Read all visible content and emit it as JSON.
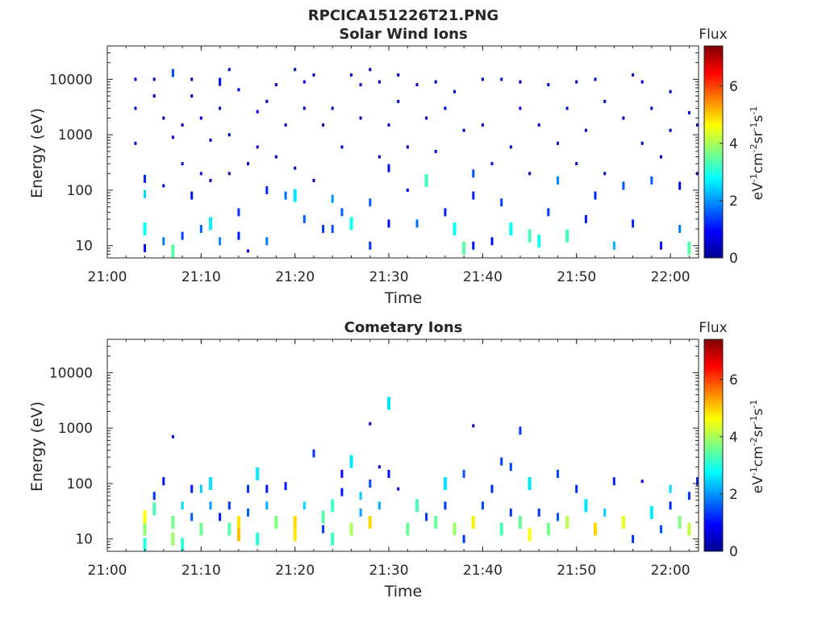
{
  "figure_title": "RPCICA151226T21.PNG",
  "colormap": {
    "stops": [
      "#00008f",
      "#0000ff",
      "#0080ff",
      "#00ffff",
      "#80ff80",
      "#ffff00",
      "#ff8000",
      "#ff0000",
      "#800000"
    ],
    "range": [
      0,
      7.4
    ]
  },
  "chart_data": [
    {
      "type": "heatmap",
      "title": "Solar Wind Ions",
      "xlabel": "Time",
      "ylabel": "Energy (eV)",
      "xlim": [
        "21:00",
        "22:03"
      ],
      "ylim": [
        6,
        40000
      ],
      "y_scale": "log",
      "x_ticks": [
        "21:00",
        "21:10",
        "21:20",
        "21:30",
        "21:40",
        "21:50",
        "22:00"
      ],
      "y_ticks": [
        "10",
        "100",
        "1000",
        "10000"
      ],
      "colorbar": {
        "label": "Flux",
        "units": "eV-1cm-2sr-1s-1",
        "ticks": [
          "0",
          "2",
          "4",
          "6"
        ],
        "range": [
          0,
          7.4
        ]
      },
      "points": [
        [
          "21:03",
          3000,
          0.5
        ],
        [
          "21:03",
          700,
          0.4
        ],
        [
          "21:03",
          10000,
          0.5
        ],
        [
          "21:04",
          85,
          2.5
        ],
        [
          "21:04",
          160,
          1.2
        ],
        [
          "21:04",
          20,
          2.8
        ],
        [
          "21:04",
          9,
          1.0
        ],
        [
          "21:05",
          10000,
          0.6
        ],
        [
          "21:05",
          5000,
          0.9
        ],
        [
          "21:06",
          120,
          0.8
        ],
        [
          "21:06",
          2000,
          0.5
        ],
        [
          "21:06",
          12,
          1.8
        ],
        [
          "21:07",
          900,
          0.7
        ],
        [
          "21:07",
          13000,
          1.4
        ],
        [
          "21:07",
          8,
          3.4
        ],
        [
          "21:08",
          1500,
          0.4
        ],
        [
          "21:08",
          300,
          0.6
        ],
        [
          "21:08",
          15,
          1.4
        ],
        [
          "21:09",
          10000,
          0.4
        ],
        [
          "21:09",
          80,
          1.1
        ],
        [
          "21:09",
          5000,
          0.6
        ],
        [
          "21:10",
          20,
          1.6
        ],
        [
          "21:10",
          2000,
          0.6
        ],
        [
          "21:10",
          200,
          0.8
        ],
        [
          "21:11",
          800,
          0.6
        ],
        [
          "21:11",
          150,
          0.4
        ],
        [
          "21:11",
          25,
          2.7
        ],
        [
          "21:12",
          9000,
          1.0
        ],
        [
          "21:12",
          3000,
          0.5
        ],
        [
          "21:12",
          12,
          1.9
        ],
        [
          "21:13",
          15000,
          0.5
        ],
        [
          "21:13",
          1000,
          0.4
        ],
        [
          "21:13",
          200,
          0.3
        ],
        [
          "21:14",
          40,
          1.3
        ],
        [
          "21:14",
          15,
          1.1
        ],
        [
          "21:14",
          6500,
          0.9
        ],
        [
          "21:15",
          300,
          0.5
        ],
        [
          "21:15",
          8,
          0.9
        ],
        [
          "21:16",
          2600,
          0.9
        ],
        [
          "21:16",
          600,
          0.6
        ],
        [
          "21:17",
          100,
          1.2
        ],
        [
          "21:17",
          12,
          1.8
        ],
        [
          "21:17",
          4000,
          0.6
        ],
        [
          "21:18",
          8000,
          0.6
        ],
        [
          "21:18",
          400,
          0.5
        ],
        [
          "21:19",
          80,
          1.7
        ],
        [
          "21:19",
          1500,
          0.6
        ],
        [
          "21:20",
          80,
          2.6
        ],
        [
          "21:20",
          15000,
          0.5
        ],
        [
          "21:20",
          250,
          0.6
        ],
        [
          "21:21",
          9000,
          0.9
        ],
        [
          "21:21",
          3000,
          0.5
        ],
        [
          "21:21",
          30,
          1.6
        ],
        [
          "21:22",
          150,
          0.6
        ],
        [
          "21:22",
          12000,
          0.4
        ],
        [
          "21:23",
          20,
          1.3
        ],
        [
          "21:23",
          1500,
          0.4
        ],
        [
          "21:24",
          20,
          1.5
        ],
        [
          "21:24",
          70,
          2.0
        ],
        [
          "21:24",
          3000,
          0.5
        ],
        [
          "21:25",
          40,
          1.6
        ],
        [
          "21:25",
          600,
          0.5
        ],
        [
          "21:26",
          12000,
          0.6
        ],
        [
          "21:26",
          25,
          2.9
        ],
        [
          "21:27",
          2000,
          0.4
        ],
        [
          "21:27",
          8000,
          0.6
        ],
        [
          "21:28",
          15000,
          0.6
        ],
        [
          "21:28",
          60,
          1.6
        ],
        [
          "21:28",
          10,
          1.3
        ],
        [
          "21:29",
          400,
          0.6
        ],
        [
          "21:29",
          9000,
          0.6
        ],
        [
          "21:30",
          1500,
          0.5
        ],
        [
          "21:30",
          250,
          1.0
        ],
        [
          "21:30",
          25,
          1.0
        ],
        [
          "21:31",
          12000,
          0.4
        ],
        [
          "21:31",
          4000,
          0.5
        ],
        [
          "21:32",
          100,
          0.8
        ],
        [
          "21:32",
          600,
          0.4
        ],
        [
          "21:33",
          8000,
          0.6
        ],
        [
          "21:33",
          25,
          1.7
        ],
        [
          "21:34",
          150,
          3.2
        ],
        [
          "21:34",
          2000,
          0.7
        ],
        [
          "21:35",
          9000,
          0.4
        ],
        [
          "21:35",
          500,
          0.5
        ],
        [
          "21:36",
          40,
          1.2
        ],
        [
          "21:36",
          3000,
          0.6
        ],
        [
          "21:37",
          20,
          2.8
        ],
        [
          "21:37",
          6000,
          0.4
        ],
        [
          "21:38",
          9,
          3.4
        ],
        [
          "21:38",
          1200,
          0.5
        ],
        [
          "21:39",
          10,
          1.0
        ],
        [
          "21:39",
          200,
          1.5
        ],
        [
          "21:39",
          80,
          1.2
        ],
        [
          "21:40",
          10000,
          0.4
        ],
        [
          "21:40",
          1500,
          0.6
        ],
        [
          "21:41",
          300,
          0.5
        ],
        [
          "21:41",
          12,
          1.0
        ],
        [
          "21:42",
          60,
          1.4
        ],
        [
          "21:42",
          10000,
          0.5
        ],
        [
          "21:43",
          20,
          2.8
        ],
        [
          "21:43",
          600,
          0.5
        ],
        [
          "21:44",
          9000,
          0.4
        ],
        [
          "21:44",
          3000,
          0.6
        ],
        [
          "21:45",
          15,
          3.3
        ],
        [
          "21:45",
          200,
          0.5
        ],
        [
          "21:46",
          1500,
          0.5
        ],
        [
          "21:46",
          12,
          2.9
        ],
        [
          "21:47",
          8000,
          0.6
        ],
        [
          "21:47",
          40,
          1.3
        ],
        [
          "21:48",
          150,
          1.9
        ],
        [
          "21:48",
          700,
          0.4
        ],
        [
          "21:49",
          15,
          3.2
        ],
        [
          "21:49",
          3000,
          0.5
        ],
        [
          "21:50",
          9000,
          0.5
        ],
        [
          "21:50",
          300,
          0.5
        ],
        [
          "21:51",
          1200,
          0.6
        ],
        [
          "21:51",
          30,
          1.1
        ],
        [
          "21:52",
          10000,
          0.4
        ],
        [
          "21:52",
          80,
          1.2
        ],
        [
          "21:53",
          200,
          0.6
        ],
        [
          "21:53",
          4000,
          0.6
        ],
        [
          "21:54",
          10,
          2.2
        ],
        [
          "21:55",
          2000,
          0.5
        ],
        [
          "21:55",
          120,
          1.5
        ],
        [
          "21:56",
          25,
          1.2
        ],
        [
          "21:56",
          12000,
          0.5
        ],
        [
          "21:57",
          700,
          0.4
        ],
        [
          "21:57",
          9000,
          0.6
        ],
        [
          "21:58",
          150,
          1.6
        ],
        [
          "21:58",
          3000,
          0.5
        ],
        [
          "21:59",
          10,
          1.1
        ],
        [
          "21:59",
          400,
          0.5
        ],
        [
          "22:00",
          6000,
          0.5
        ],
        [
          "22:00",
          1200,
          0.5
        ],
        [
          "22:01",
          120,
          1.0
        ],
        [
          "22:01",
          20,
          1.8
        ],
        [
          "22:02",
          2500,
          0.6
        ],
        [
          "22:02",
          9,
          3.4
        ],
        [
          "22:03",
          200,
          0.6
        ],
        [
          "22:03",
          1500,
          0.5
        ]
      ]
    },
    {
      "type": "heatmap",
      "title": "Cometary Ions",
      "xlabel": "Time",
      "ylabel": "Energy (eV)",
      "xlim": [
        "21:00",
        "22:03"
      ],
      "ylim": [
        6,
        40000
      ],
      "y_scale": "log",
      "x_ticks": [
        "21:00",
        "21:10",
        "21:20",
        "21:30",
        "21:40",
        "21:50",
        "22:00"
      ],
      "y_ticks": [
        "10",
        "100",
        "1000",
        "10000"
      ],
      "colorbar": {
        "label": "Flux",
        "units": "eV-1cm-2sr-1s-1",
        "ticks": [
          "0",
          "2",
          "4",
          "6"
        ],
        "range": [
          0,
          7.4
        ]
      },
      "points": [
        [
          "21:04",
          15,
          3.8
        ],
        [
          "21:04",
          25,
          4.6
        ],
        [
          "21:04",
          8,
          3.0
        ],
        [
          "21:05",
          60,
          1.3
        ],
        [
          "21:05",
          35,
          3.3
        ],
        [
          "21:06",
          110,
          1.0
        ],
        [
          "21:07",
          700,
          0.5
        ],
        [
          "21:07",
          20,
          3.6
        ],
        [
          "21:07",
          10,
          3.9
        ],
        [
          "21:08",
          40,
          2.5
        ],
        [
          "21:08",
          8,
          3.1
        ],
        [
          "21:09",
          80,
          1.1
        ],
        [
          "21:09",
          25,
          1.6
        ],
        [
          "21:10",
          15,
          3.6
        ],
        [
          "21:10",
          80,
          2.4
        ],
        [
          "21:11",
          100,
          2.6
        ],
        [
          "21:11",
          40,
          2.1
        ],
        [
          "21:12",
          25,
          1.1
        ],
        [
          "21:13",
          15,
          3.4
        ],
        [
          "21:13",
          40,
          1.3
        ],
        [
          "21:14",
          20,
          4.8
        ],
        [
          "21:14",
          12,
          5.1
        ],
        [
          "21:15",
          80,
          1.3
        ],
        [
          "21:15",
          30,
          1.6
        ],
        [
          "21:16",
          150,
          2.6
        ],
        [
          "21:16",
          10,
          3.0
        ],
        [
          "21:17",
          40,
          2.2
        ],
        [
          "21:17",
          80,
          1.1
        ],
        [
          "21:18",
          20,
          3.7
        ],
        [
          "21:19",
          90,
          1.1
        ],
        [
          "21:20",
          20,
          4.9
        ],
        [
          "21:20",
          12,
          4.8
        ],
        [
          "21:21",
          40,
          2.5
        ],
        [
          "21:22",
          350,
          1.3
        ],
        [
          "21:23",
          15,
          1.3
        ],
        [
          "21:23",
          25,
          3.4
        ],
        [
          "21:24",
          10,
          3.2
        ],
        [
          "21:24",
          40,
          3.2
        ],
        [
          "21:25",
          150,
          1.0
        ],
        [
          "21:25",
          70,
          1.1
        ],
        [
          "21:26",
          250,
          2.6
        ],
        [
          "21:26",
          15,
          4.0
        ],
        [
          "21:27",
          30,
          2.1
        ],
        [
          "21:27",
          60,
          2.4
        ],
        [
          "21:28",
          1200,
          0.6
        ],
        [
          "21:28",
          20,
          4.9
        ],
        [
          "21:28",
          100,
          1.5
        ],
        [
          "21:29",
          200,
          0.6
        ],
        [
          "21:29",
          40,
          2.2
        ],
        [
          "21:30",
          2800,
          2.6
        ],
        [
          "21:30",
          150,
          1.0
        ],
        [
          "21:31",
          80,
          0.9
        ],
        [
          "21:32",
          15,
          3.5
        ],
        [
          "21:33",
          40,
          3.3
        ],
        [
          "21:34",
          25,
          1.3
        ],
        [
          "21:35",
          20,
          3.5
        ],
        [
          "21:36",
          100,
          2.6
        ],
        [
          "21:36",
          40,
          1.3
        ],
        [
          "21:37",
          15,
          3.9
        ],
        [
          "21:38",
          150,
          1.5
        ],
        [
          "21:38",
          10,
          1.3
        ],
        [
          "21:39",
          1100,
          0.6
        ],
        [
          "21:39",
          20,
          4.7
        ],
        [
          "21:40",
          40,
          1.4
        ],
        [
          "21:41",
          80,
          1.2
        ],
        [
          "21:42",
          250,
          1.4
        ],
        [
          "21:42",
          15,
          3.3
        ],
        [
          "21:43",
          200,
          1.4
        ],
        [
          "21:43",
          30,
          1.3
        ],
        [
          "21:44",
          900,
          1.3
        ],
        [
          "21:44",
          20,
          3.5
        ],
        [
          "21:45",
          100,
          2.6
        ],
        [
          "21:45",
          12,
          4.6
        ],
        [
          "21:46",
          30,
          1.3
        ],
        [
          "21:47",
          15,
          3.6
        ],
        [
          "21:48",
          150,
          1.4
        ],
        [
          "21:48",
          25,
          1.6
        ],
        [
          "21:49",
          20,
          4.1
        ],
        [
          "21:50",
          80,
          1.2
        ],
        [
          "21:51",
          40,
          2.6
        ],
        [
          "21:52",
          15,
          4.9
        ],
        [
          "21:53",
          30,
          2.4
        ],
        [
          "21:54",
          110,
          1.2
        ],
        [
          "21:55",
          20,
          4.5
        ],
        [
          "21:56",
          10,
          1.3
        ],
        [
          "21:57",
          110,
          0.9
        ],
        [
          "21:58",
          30,
          2.6
        ],
        [
          "21:59",
          15,
          1.5
        ],
        [
          "22:00",
          80,
          2.5
        ],
        [
          "22:00",
          40,
          1.2
        ],
        [
          "22:01",
          20,
          3.7
        ],
        [
          "22:02",
          15,
          4.2
        ],
        [
          "22:02",
          60,
          1.3
        ],
        [
          "22:03",
          110,
          1.2
        ]
      ]
    }
  ]
}
